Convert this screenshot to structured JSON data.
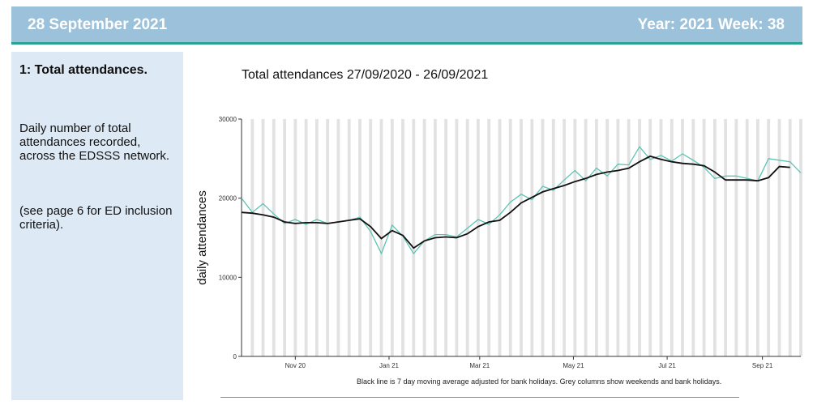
{
  "header": {
    "date": "28 September 2021",
    "year_week": "Year: 2021  Week: 38"
  },
  "sidebar": {
    "title": "1: Total attendances.",
    "description": "Daily number of total attendances recorded, across the EDSSS network.",
    "note": "(see page 6 for ED inclusion criteria)."
  },
  "colors": {
    "header_bg": "#9cc2db",
    "header_rule": "#2aa392",
    "sidebar_bg": "#dde9f4",
    "daily_line": "#5cc4b4",
    "average_line": "#111111",
    "grey_columns": "#e2e2e2"
  },
  "chart_data": {
    "type": "line",
    "title": "Total attendances 27/09/2020 - 26/09/2021",
    "xlabel": "",
    "ylabel": "daily attendances",
    "ylim": [
      0,
      30000
    ],
    "yticks": [
      0,
      10000,
      20000,
      30000
    ],
    "xlim": [
      "2020-09-27",
      "2021-09-26"
    ],
    "xticks": [
      {
        "date": "2020-11-01",
        "label": "Nov 20"
      },
      {
        "date": "2021-01-01",
        "label": "Jan 21"
      },
      {
        "date": "2021-03-01",
        "label": "Mar 21"
      },
      {
        "date": "2021-05-01",
        "label": "May 21"
      },
      {
        "date": "2021-07-01",
        "label": "Jul 21"
      },
      {
        "date": "2021-09-01",
        "label": "Sep 21"
      }
    ],
    "grid": "grey columns for weekends and bank holidays",
    "legend": "none",
    "caption": "Black line is 7 day moving average adjusted for bank holidays. Grey columns show weekends and bank holidays.",
    "series": [
      {
        "style": "daily",
        "x": [
          "2020-09-27",
          "2020-10-04",
          "2020-10-11",
          "2020-10-18",
          "2020-10-25",
          "2020-11-01",
          "2020-11-08",
          "2020-11-15",
          "2020-11-22",
          "2020-11-29",
          "2020-12-06",
          "2020-12-13",
          "2020-12-20",
          "2020-12-27",
          "2021-01-03",
          "2021-01-10",
          "2021-01-17",
          "2021-01-24",
          "2021-01-31",
          "2021-02-07",
          "2021-02-14",
          "2021-02-21",
          "2021-02-28",
          "2021-03-07",
          "2021-03-14",
          "2021-03-21",
          "2021-03-28",
          "2021-04-04",
          "2021-04-11",
          "2021-04-18",
          "2021-04-25",
          "2021-05-02",
          "2021-05-09",
          "2021-05-16",
          "2021-05-23",
          "2021-05-30",
          "2021-06-06",
          "2021-06-13",
          "2021-06-20",
          "2021-06-27",
          "2021-07-04",
          "2021-07-11",
          "2021-07-18",
          "2021-07-25",
          "2021-08-01",
          "2021-08-08",
          "2021-08-15",
          "2021-08-22",
          "2021-08-29",
          "2021-09-05",
          "2021-09-12",
          "2021-09-19",
          "2021-09-26"
        ],
        "values": [
          20000,
          18200,
          19300,
          18000,
          16800,
          17300,
          16700,
          17300,
          16800,
          17000,
          17200,
          17600,
          15800,
          13000,
          16600,
          15200,
          13000,
          14600,
          15400,
          15400,
          15100,
          16200,
          17300,
          16700,
          17900,
          19500,
          20500,
          19800,
          21500,
          21000,
          22300,
          23500,
          22200,
          23800,
          22800,
          24300,
          24200,
          26500,
          24900,
          25400,
          24700,
          25600,
          24800,
          23900,
          22500,
          22800,
          22800,
          22500,
          22200,
          25000,
          24800,
          24600,
          23200
        ]
      },
      {
        "style": "7-day average",
        "x": [
          "2020-09-27",
          "2020-10-04",
          "2020-10-11",
          "2020-10-18",
          "2020-10-25",
          "2020-11-01",
          "2020-11-08",
          "2020-11-15",
          "2020-11-22",
          "2020-11-29",
          "2020-12-06",
          "2020-12-13",
          "2020-12-20",
          "2020-12-27",
          "2021-01-03",
          "2021-01-10",
          "2021-01-17",
          "2021-01-24",
          "2021-01-31",
          "2021-02-07",
          "2021-02-14",
          "2021-02-21",
          "2021-02-28",
          "2021-03-07",
          "2021-03-14",
          "2021-03-21",
          "2021-03-28",
          "2021-04-04",
          "2021-04-11",
          "2021-04-18",
          "2021-04-25",
          "2021-05-02",
          "2021-05-09",
          "2021-05-16",
          "2021-05-23",
          "2021-05-30",
          "2021-06-06",
          "2021-06-13",
          "2021-06-20",
          "2021-06-27",
          "2021-07-04",
          "2021-07-11",
          "2021-07-18",
          "2021-07-25",
          "2021-08-01",
          "2021-08-08",
          "2021-08-15",
          "2021-08-22",
          "2021-08-29",
          "2021-09-05",
          "2021-09-12",
          "2021-09-19"
        ],
        "values": [
          18200,
          18100,
          17900,
          17600,
          17000,
          16800,
          16900,
          16900,
          16800,
          17000,
          17200,
          17400,
          16400,
          14900,
          15900,
          15300,
          13700,
          14600,
          15000,
          15100,
          15000,
          15500,
          16400,
          17000,
          17200,
          18200,
          19400,
          20100,
          20800,
          21200,
          21600,
          22100,
          22500,
          23000,
          23300,
          23500,
          23800,
          24600,
          25300,
          24900,
          24600,
          24400,
          24300,
          24100,
          23300,
          22300,
          22300,
          22300,
          22200,
          22600,
          24000,
          23900
        ]
      }
    ]
  }
}
